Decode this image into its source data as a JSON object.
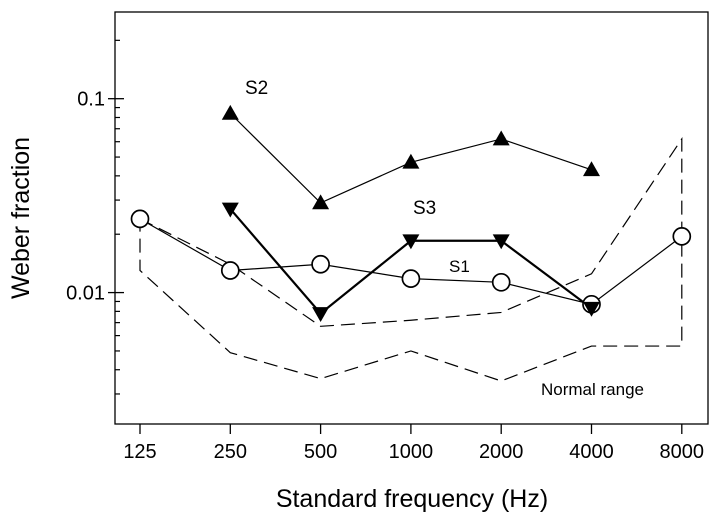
{
  "chart_data": {
    "type": "line",
    "title": "",
    "xlabel": "Standard frequency (Hz)",
    "ylabel": "Weber fraction",
    "xscale": "log2",
    "yscale": "log10",
    "x_ticks": [
      "125",
      "250",
      "500",
      "1000",
      "2000",
      "4000",
      "8000"
    ],
    "y_tick_labels": [
      {
        "value": 0.01,
        "label": "0.01"
      },
      {
        "value": 0.1,
        "label": "0.1"
      }
    ],
    "ylim": [
      0.0021,
      0.28
    ],
    "grid": false,
    "series": [
      {
        "name": "S1",
        "marker": "open-circle",
        "line": "thin-solid",
        "x": [
          125,
          250,
          500,
          1000,
          2000,
          4000,
          8000
        ],
        "y": [
          0.024,
          0.013,
          0.014,
          0.0118,
          0.0113,
          0.0087,
          0.0195
        ]
      },
      {
        "name": "S2",
        "marker": "filled-triangle-up",
        "line": "thin-solid",
        "x": [
          250,
          500,
          1000,
          2000,
          4000
        ],
        "y": [
          0.084,
          0.029,
          0.047,
          0.062,
          0.043
        ]
      },
      {
        "name": "S3",
        "marker": "filled-triangle-down",
        "line": "thick-solid",
        "x": [
          250,
          500,
          1000,
          2000,
          4000
        ],
        "y": [
          0.027,
          0.0078,
          0.0185,
          0.0185,
          0.0083
        ]
      }
    ],
    "normal_range": {
      "label": "Normal range",
      "upper": {
        "x": [
          125,
          250,
          500,
          1000,
          2000,
          4000,
          8000
        ],
        "y": [
          0.024,
          0.014,
          0.0067,
          0.0072,
          0.0079,
          0.0125,
          0.062
        ]
      },
      "lower": {
        "x": [
          125,
          250,
          500,
          1000,
          2000,
          4000,
          8000
        ],
        "y": [
          0.013,
          0.0049,
          0.0036,
          0.005,
          0.0035,
          0.0053,
          0.0053
        ]
      }
    }
  }
}
